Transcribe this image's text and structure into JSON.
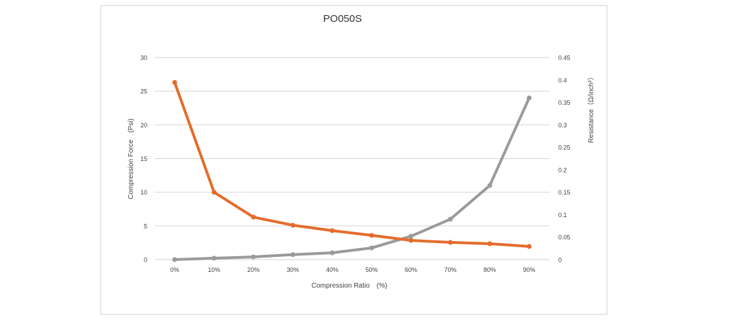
{
  "chart_data": {
    "type": "line",
    "title": "PO050S",
    "xlabel": "Compression Ratio　(%)",
    "ylabel": "Compression Force　(Psi)",
    "y2label": "Resistance（Ω/inch²）",
    "categories": [
      "0%",
      "10%",
      "20%",
      "30%",
      "40%",
      "50%",
      "60%",
      "70%",
      "80%",
      "90%"
    ],
    "ylim": [
      0,
      30
    ],
    "y_ticks": [
      0,
      5,
      10,
      15,
      20,
      25,
      30
    ],
    "y2lim": [
      0,
      0.45
    ],
    "y2_ticks": [
      "0",
      "0.05",
      "0.1",
      "0.15",
      "0.2",
      "0.25",
      "0.3",
      "0.35",
      "0.4",
      "0.45"
    ],
    "grid": true,
    "series": [
      {
        "axis": "left",
        "color": "#E46C2C",
        "values": [
          26.3,
          10.0,
          6.3,
          5.1,
          4.3,
          3.6,
          2.85,
          2.55,
          2.35,
          1.95
        ]
      },
      {
        "axis": "right",
        "color": "#9A9A9A",
        "values": [
          0,
          0.003,
          0.006,
          0.011,
          0.015,
          0.026,
          0.052,
          0.09,
          0.165,
          0.36
        ]
      }
    ]
  }
}
